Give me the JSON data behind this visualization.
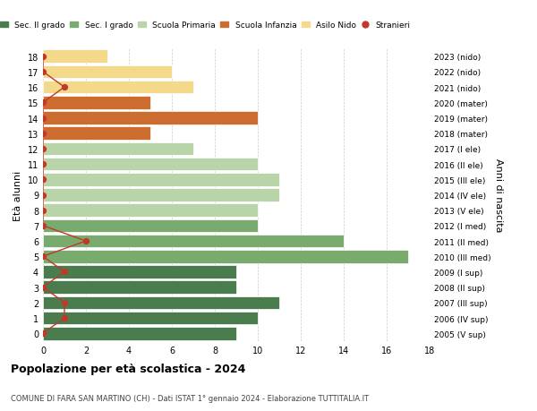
{
  "ages": [
    18,
    17,
    16,
    15,
    14,
    13,
    12,
    11,
    10,
    9,
    8,
    7,
    6,
    5,
    4,
    3,
    2,
    1,
    0
  ],
  "years": [
    "2005 (V sup)",
    "2006 (IV sup)",
    "2007 (III sup)",
    "2008 (II sup)",
    "2009 (I sup)",
    "2010 (III med)",
    "2011 (II med)",
    "2012 (I med)",
    "2013 (V ele)",
    "2014 (IV ele)",
    "2015 (III ele)",
    "2016 (II ele)",
    "2017 (I ele)",
    "2018 (mater)",
    "2019 (mater)",
    "2020 (mater)",
    "2021 (nido)",
    "2022 (nido)",
    "2023 (nido)"
  ],
  "bar_values": [
    9,
    10,
    11,
    9,
    9,
    17,
    14,
    10,
    10,
    11,
    11,
    10,
    7,
    5,
    10,
    5,
    7,
    6,
    3
  ],
  "bar_colors": [
    "#4a7c4e",
    "#4a7c4e",
    "#4a7c4e",
    "#4a7c4e",
    "#4a7c4e",
    "#7aab6e",
    "#7aab6e",
    "#7aab6e",
    "#b8d4a8",
    "#b8d4a8",
    "#b8d4a8",
    "#b8d4a8",
    "#b8d4a8",
    "#cc6c2f",
    "#cc6c2f",
    "#cc6c2f",
    "#f5d98a",
    "#f5d98a",
    "#f5d98a"
  ],
  "stranieri_values": [
    0,
    1,
    1,
    0,
    1,
    0,
    2,
    0,
    0,
    0,
    0,
    0,
    0,
    0,
    0,
    0,
    1,
    0,
    0
  ],
  "stranieri_color": "#c0392b",
  "legend_labels": [
    "Sec. II grado",
    "Sec. I grado",
    "Scuola Primaria",
    "Scuola Infanzia",
    "Asilo Nido",
    "Stranieri"
  ],
  "legend_colors": [
    "#4a7c4e",
    "#7aab6e",
    "#b8d4a8",
    "#cc6c2f",
    "#f5d98a",
    "#c0392b"
  ],
  "title": "Popolazione per età scolastica - 2024",
  "subtitle": "COMUNE DI FARA SAN MARTINO (CH) - Dati ISTAT 1° gennaio 2024 - Elaborazione TUTTITALIA.IT",
  "ylabel_left": "Età alunni",
  "ylabel_right": "Anni di nascita",
  "xlim": [
    0,
    18
  ],
  "background_color": "#ffffff",
  "grid_color": "#cccccc"
}
